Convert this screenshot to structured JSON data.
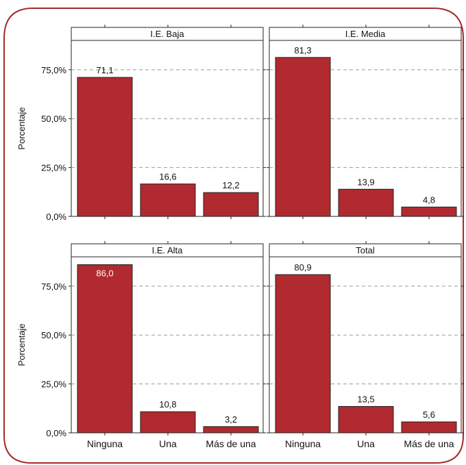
{
  "figure": {
    "y_label": "Porcentaje",
    "frame_color": "#a52a2a",
    "bar_color": "#b02a30",
    "bar_label_inside_color": "#ffffff",
    "grid": "dashed",
    "y_ticks": [
      0,
      25,
      50,
      75
    ],
    "y_tick_labels": [
      "0,0%",
      "25,0%",
      "50,0%",
      "75,0%"
    ]
  },
  "chart_data": [
    {
      "type": "bar",
      "title": "I.E. Baja",
      "categories": [
        "Ninguna",
        "Una",
        "Más de una"
      ],
      "values": [
        71.1,
        16.6,
        12.2
      ],
      "value_labels": [
        "71,1",
        "16,6",
        "12,2"
      ],
      "ylabel": "Porcentaje",
      "ylim": [
        0,
        90
      ]
    },
    {
      "type": "bar",
      "title": "I.E. Media",
      "categories": [
        "Ninguna",
        "Una",
        "Más de una"
      ],
      "values": [
        81.3,
        13.9,
        4.8
      ],
      "value_labels": [
        "81,3",
        "13,9",
        "4,8"
      ],
      "ylabel": "",
      "ylim": [
        0,
        90
      ]
    },
    {
      "type": "bar",
      "title": "I.E. Alta",
      "categories": [
        "Ninguna",
        "Una",
        "Más de una"
      ],
      "values": [
        86.0,
        10.8,
        3.2
      ],
      "value_labels": [
        "86,0",
        "10,8",
        "3,2"
      ],
      "ylabel": "Porcentaje",
      "ylim": [
        0,
        90
      ]
    },
    {
      "type": "bar",
      "title": "Total",
      "categories": [
        "Ninguna",
        "Una",
        "Más de una"
      ],
      "values": [
        80.9,
        13.5,
        5.6
      ],
      "value_labels": [
        "80,9",
        "13,5",
        "5,6"
      ],
      "ylabel": "",
      "ylim": [
        0,
        90
      ]
    }
  ]
}
